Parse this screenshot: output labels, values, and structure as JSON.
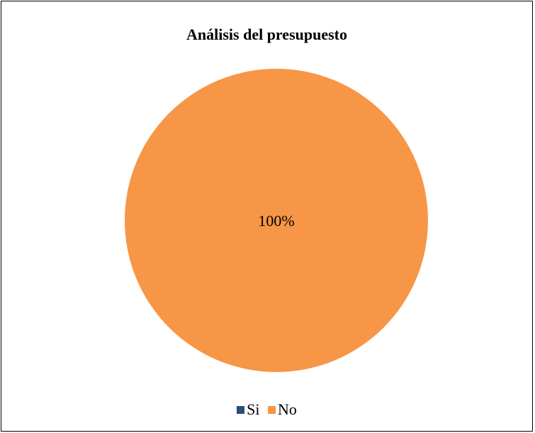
{
  "chart_data": {
    "type": "pie",
    "title": "Análisis del presupuesto",
    "categories": [
      "Si",
      "No"
    ],
    "values": [
      0,
      100
    ],
    "data_labels": [
      "",
      "100%"
    ],
    "colors": [
      "#2e4d7b",
      "#f79646"
    ],
    "legend_position": "bottom"
  }
}
